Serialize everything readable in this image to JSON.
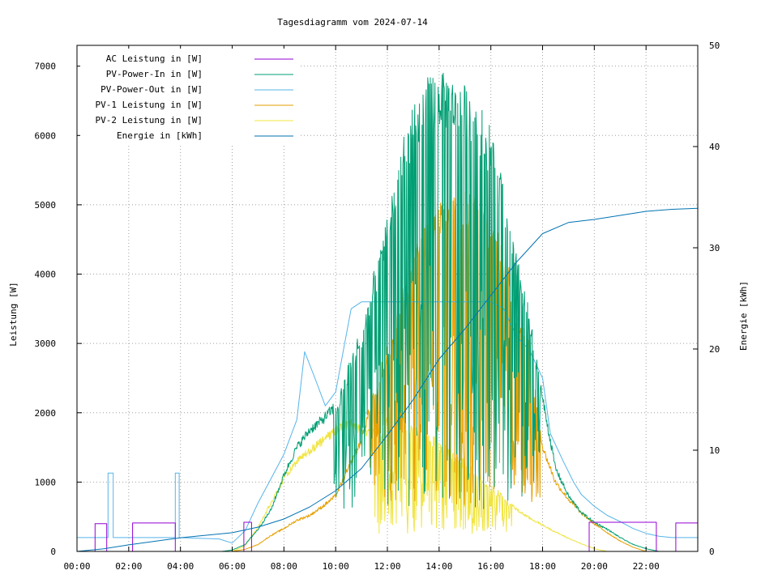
{
  "chart_data": {
    "type": "line",
    "title": "Tagesdiagramm vom 2024-07-14",
    "xlabel": "",
    "ylabel": "Leistung [W]",
    "y2label": "Energie [kWh]",
    "xlim_hours": [
      0,
      24
    ],
    "ylim": [
      0,
      7300
    ],
    "y2lim": [
      0,
      50
    ],
    "x_ticks": [
      {
        "h": 0,
        "label": "00:00"
      },
      {
        "h": 2,
        "label": "02:00"
      },
      {
        "h": 4,
        "label": "04:00"
      },
      {
        "h": 6,
        "label": "06:00"
      },
      {
        "h": 8,
        "label": "08:00"
      },
      {
        "h": 10,
        "label": "10:00"
      },
      {
        "h": 12,
        "label": "12:00"
      },
      {
        "h": 14,
        "label": "14:00"
      },
      {
        "h": 16,
        "label": "16:00"
      },
      {
        "h": 18,
        "label": "18:00"
      },
      {
        "h": 20,
        "label": "20:00"
      },
      {
        "h": 22,
        "label": "22:00"
      }
    ],
    "y_ticks": [
      0,
      1000,
      2000,
      3000,
      4000,
      5000,
      6000,
      7000
    ],
    "y2_ticks": [
      0,
      10,
      20,
      30,
      40,
      50
    ],
    "grid": true,
    "legend_position": "top-left",
    "series": [
      {
        "name": "AC Leistung in [W]",
        "color": "#9400d3",
        "axis": "y",
        "style": "segments",
        "points": [
          [
            0,
            0
          ],
          [
            0.7,
            0
          ],
          [
            0.7,
            400
          ],
          [
            1.15,
            400
          ],
          [
            1.15,
            0
          ],
          [
            2.15,
            0
          ],
          [
            2.15,
            410
          ],
          [
            3.8,
            410
          ],
          [
            3.8,
            0
          ],
          [
            6.45,
            0
          ],
          [
            6.45,
            420
          ],
          [
            6.75,
            420
          ],
          [
            6.75,
            0
          ],
          [
            19.8,
            0
          ],
          [
            19.8,
            420
          ],
          [
            22.4,
            420
          ],
          [
            22.4,
            0
          ],
          [
            23.15,
            0
          ],
          [
            23.15,
            410
          ],
          [
            24,
            410
          ]
        ]
      },
      {
        "name": "PV-Power-In in [W]",
        "color": "#009e73",
        "axis": "y",
        "style": "noisy",
        "points": [
          [
            0,
            0
          ],
          [
            5.6,
            0
          ],
          [
            6.0,
            20
          ],
          [
            6.5,
            100
          ],
          [
            7.0,
            320
          ],
          [
            7.5,
            600
          ],
          [
            8.0,
            1100
          ],
          [
            8.5,
            1500
          ],
          [
            9.0,
            1750
          ],
          [
            9.5,
            1900
          ],
          [
            10.0,
            2100
          ],
          [
            10.5,
            2700
          ],
          [
            11.0,
            3200
          ],
          [
            11.5,
            4000
          ],
          [
            12.0,
            4800
          ],
          [
            12.5,
            5700
          ],
          [
            13.0,
            6300
          ],
          [
            13.5,
            6700
          ],
          [
            14.0,
            6800
          ],
          [
            14.5,
            6700
          ],
          [
            15.0,
            6600
          ],
          [
            15.5,
            6400
          ],
          [
            16.0,
            6000
          ],
          [
            16.5,
            5200
          ],
          [
            17.0,
            4200
          ],
          [
            17.5,
            3400
          ],
          [
            18.0,
            2200
          ],
          [
            18.5,
            1200
          ],
          [
            19.0,
            800
          ],
          [
            19.5,
            560
          ],
          [
            20.0,
            420
          ],
          [
            20.5,
            320
          ],
          [
            21.0,
            200
          ],
          [
            21.5,
            100
          ],
          [
            22.0,
            40
          ],
          [
            22.5,
            0
          ],
          [
            24,
            0
          ]
        ],
        "noise": {
          "from": 9.9,
          "to": 17.9,
          "low": 600
        }
      },
      {
        "name": "PV-Power-Out in [W]",
        "color": "#56b4e9",
        "axis": "y",
        "style": "segments",
        "points": [
          [
            0,
            200
          ],
          [
            1.2,
            200
          ],
          [
            1.2,
            1130
          ],
          [
            1.4,
            1130
          ],
          [
            1.4,
            200
          ],
          [
            3.8,
            200
          ],
          [
            3.8,
            1130
          ],
          [
            3.95,
            1130
          ],
          [
            3.95,
            200
          ],
          [
            5.5,
            180
          ],
          [
            6.0,
            120
          ],
          [
            6.5,
            300
          ],
          [
            7.0,
            700
          ],
          [
            7.5,
            1050
          ],
          [
            8.0,
            1400
          ],
          [
            8.5,
            1900
          ],
          [
            8.8,
            2880
          ],
          [
            9.2,
            2500
          ],
          [
            9.6,
            2100
          ],
          [
            10.0,
            2300
          ],
          [
            10.3,
            2900
          ],
          [
            10.6,
            3500
          ],
          [
            11.0,
            3600
          ],
          [
            12.0,
            3600
          ],
          [
            13.0,
            3600
          ],
          [
            14.0,
            3600
          ],
          [
            15.0,
            3600
          ],
          [
            16.0,
            3600
          ],
          [
            16.5,
            3500
          ],
          [
            17.0,
            3100
          ],
          [
            17.5,
            2900
          ],
          [
            18.0,
            2500
          ],
          [
            18.3,
            1700
          ],
          [
            18.8,
            1300
          ],
          [
            19.2,
            1000
          ],
          [
            19.5,
            820
          ],
          [
            20.0,
            650
          ],
          [
            20.5,
            520
          ],
          [
            21.0,
            430
          ],
          [
            21.5,
            330
          ],
          [
            22.0,
            260
          ],
          [
            22.5,
            220
          ],
          [
            23.0,
            200
          ],
          [
            24,
            200
          ]
        ]
      },
      {
        "name": "PV-1 Leistung in [W]",
        "color": "#e69f00",
        "axis": "y",
        "style": "noisy",
        "points": [
          [
            0,
            0
          ],
          [
            6.0,
            0
          ],
          [
            6.5,
            30
          ],
          [
            7.0,
            100
          ],
          [
            7.5,
            230
          ],
          [
            8.0,
            330
          ],
          [
            8.5,
            450
          ],
          [
            9.0,
            520
          ],
          [
            9.5,
            650
          ],
          [
            10.0,
            800
          ],
          [
            10.5,
            1200
          ],
          [
            11.0,
            1600
          ],
          [
            11.5,
            2300
          ],
          [
            12.0,
            3000
          ],
          [
            12.5,
            3600
          ],
          [
            13.0,
            4200
          ],
          [
            13.5,
            4700
          ],
          [
            14.0,
            5000
          ],
          [
            14.5,
            5150
          ],
          [
            15.0,
            5150
          ],
          [
            15.5,
            5100
          ],
          [
            16.0,
            4800
          ],
          [
            16.5,
            4300
          ],
          [
            17.0,
            3600
          ],
          [
            17.5,
            3000
          ],
          [
            18.0,
            1500
          ],
          [
            18.5,
            1000
          ],
          [
            19.0,
            750
          ],
          [
            19.5,
            550
          ],
          [
            20.0,
            400
          ],
          [
            20.5,
            270
          ],
          [
            21.0,
            150
          ],
          [
            21.5,
            60
          ],
          [
            22.0,
            0
          ],
          [
            24,
            0
          ]
        ],
        "noise": {
          "from": 11.3,
          "to": 17.9,
          "low": 600
        }
      },
      {
        "name": "PV-2 Leistung in [W]",
        "color": "#f0e442",
        "axis": "y",
        "style": "noisy",
        "points": [
          [
            0,
            0
          ],
          [
            6.0,
            0
          ],
          [
            6.5,
            80
          ],
          [
            7.0,
            350
          ],
          [
            7.5,
            700
          ],
          [
            8.0,
            1050
          ],
          [
            8.5,
            1300
          ],
          [
            9.0,
            1450
          ],
          [
            9.5,
            1600
          ],
          [
            10.0,
            1750
          ],
          [
            10.5,
            1850
          ],
          [
            11.0,
            1750
          ],
          [
            11.5,
            1700
          ],
          [
            12.0,
            1900
          ],
          [
            12.5,
            1950
          ],
          [
            13.0,
            1850
          ],
          [
            13.5,
            1700
          ],
          [
            14.0,
            1600
          ],
          [
            14.5,
            1450
          ],
          [
            15.0,
            1300
          ],
          [
            15.5,
            1150
          ],
          [
            16.0,
            950
          ],
          [
            16.5,
            800
          ],
          [
            17.0,
            600
          ],
          [
            17.5,
            480
          ],
          [
            18.0,
            380
          ],
          [
            18.5,
            280
          ],
          [
            19.0,
            190
          ],
          [
            19.5,
            110
          ],
          [
            20.0,
            40
          ],
          [
            20.5,
            0
          ],
          [
            24,
            0
          ]
        ],
        "noise": {
          "from": 11.5,
          "to": 16.8,
          "low": 250
        }
      },
      {
        "name": "Energie in [kWh]",
        "color": "#0072b2",
        "axis": "y2",
        "style": "line",
        "points": [
          [
            0,
            0
          ],
          [
            1,
            0.25
          ],
          [
            2,
            0.65
          ],
          [
            3,
            1.0
          ],
          [
            4,
            1.35
          ],
          [
            5,
            1.6
          ],
          [
            6,
            1.85
          ],
          [
            7,
            2.4
          ],
          [
            8,
            3.2
          ],
          [
            9,
            4.4
          ],
          [
            10,
            6.0
          ],
          [
            11,
            8.2
          ],
          [
            12,
            11.5
          ],
          [
            13,
            15.0
          ],
          [
            14,
            19.0
          ],
          [
            15,
            22.0
          ],
          [
            16,
            25.3
          ],
          [
            17,
            28.6
          ],
          [
            18,
            31.4
          ],
          [
            19,
            32.5
          ],
          [
            20,
            32.8
          ],
          [
            21,
            33.2
          ],
          [
            22,
            33.6
          ],
          [
            23,
            33.8
          ],
          [
            24,
            33.9
          ]
        ]
      }
    ]
  }
}
